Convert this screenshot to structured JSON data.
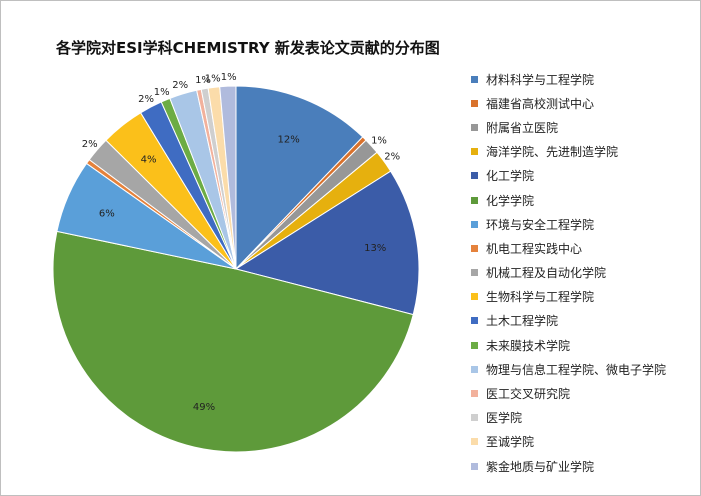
{
  "chart_data": {
    "type": "pie",
    "title": "各学院对ESI学科CHEMISTRY 新发表论文贡献的分布图",
    "legend_position": "right",
    "categories": [
      "材料科学与工程学院",
      "福建省高校测试中心",
      "附属省立医院",
      "海洋学院、先进制造学院",
      "化工学院",
      "化学学院",
      "环境与安全工程学院",
      "机电工程实践中心",
      "机械工程及自动化学院",
      "生物科学与工程学院",
      "土木工程学院",
      "未来膜技术学院",
      "物理与信息工程学院、微电子学院",
      "医工交叉研究院",
      "医学院",
      "至诚学院",
      "紫金地质与矿业学院"
    ],
    "values": [
      12.0,
      0.4,
      1.4,
      2.0,
      12.8,
      48.6,
      6.4,
      0.4,
      2.2,
      3.8,
      2.0,
      0.8,
      2.4,
      0.4,
      0.6,
      1.0,
      1.4
    ],
    "data_labels": [
      "12%",
      "",
      "1%",
      "2%",
      "13%",
      "49%",
      "6%",
      "",
      "2%",
      "4%",
      "2%",
      "1%",
      "2%",
      "",
      "1%",
      "1%",
      "1%"
    ],
    "colors": [
      "#4a7ebb",
      "#d9722c",
      "#979797",
      "#e6b00e",
      "#3b5ca8",
      "#5e9a3a",
      "#5a9fd9",
      "#e5823c",
      "#a6a6a6",
      "#fbc01a",
      "#3f6cc2",
      "#6cac44",
      "#a9c6e7",
      "#f2b19c",
      "#cfcfcf",
      "#fbdcaa",
      "#b0bbdd"
    ]
  }
}
